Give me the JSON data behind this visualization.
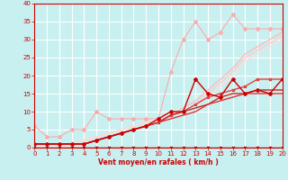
{
  "background_color": "#c8f0f0",
  "grid_color": "#ffffff",
  "xlabel": "Vent moyen/en rafales ( km/h )",
  "xlabel_color": "#cc0000",
  "tick_color": "#cc0000",
  "xlim": [
    0,
    20
  ],
  "ylim": [
    0,
    40
  ],
  "xticks": [
    0,
    1,
    2,
    3,
    4,
    5,
    6,
    7,
    8,
    9,
    10,
    11,
    12,
    13,
    14,
    15,
    16,
    17,
    18,
    19,
    20
  ],
  "yticks": [
    0,
    5,
    10,
    15,
    20,
    25,
    30,
    35,
    40
  ],
  "series": [
    {
      "x": [
        0,
        1,
        2,
        3,
        4,
        5,
        6,
        7,
        8,
        9,
        10,
        11,
        12,
        13,
        14,
        15,
        16,
        17,
        18,
        19,
        20
      ],
      "y": [
        6,
        3,
        3,
        5,
        5,
        10,
        8,
        8,
        8,
        8,
        8,
        21,
        30,
        35,
        30,
        32,
        37,
        33,
        33,
        33,
        33
      ],
      "color": "#ffaaaa",
      "lw": 0.8,
      "marker": "D",
      "ms": 2,
      "zorder": 2
    },
    {
      "x": [
        0,
        1,
        2,
        3,
        4,
        5,
        6,
        7,
        8,
        9,
        10,
        11,
        12,
        13,
        14,
        15,
        16,
        17,
        18,
        19,
        20
      ],
      "y": [
        0,
        0,
        0,
        1,
        2,
        3,
        4,
        5,
        6,
        7,
        8,
        9,
        11,
        13,
        16,
        19,
        22,
        26,
        28,
        30,
        32
      ],
      "color": "#ffbbbb",
      "lw": 1.0,
      "marker": null,
      "ms": 0,
      "zorder": 3
    },
    {
      "x": [
        0,
        1,
        2,
        3,
        4,
        5,
        6,
        7,
        8,
        9,
        10,
        11,
        12,
        13,
        14,
        15,
        16,
        17,
        18,
        19,
        20
      ],
      "y": [
        0,
        0,
        0,
        1,
        2,
        3,
        4,
        5,
        6,
        7,
        8,
        9,
        10,
        12,
        15,
        18,
        21,
        25,
        27,
        29,
        31
      ],
      "color": "#ffcccc",
      "lw": 1.0,
      "marker": null,
      "ms": 0,
      "zorder": 3
    },
    {
      "x": [
        0,
        1,
        2,
        3,
        4,
        5,
        6,
        7,
        8,
        9,
        10,
        11,
        12,
        13,
        14,
        15,
        16,
        17,
        18,
        19,
        20
      ],
      "y": [
        0,
        0,
        0,
        1,
        2,
        3,
        4,
        5,
        6,
        7,
        8,
        9,
        10,
        12,
        14,
        17,
        20,
        24,
        26,
        28,
        30
      ],
      "color": "#ffdddd",
      "lw": 1.0,
      "marker": null,
      "ms": 0,
      "zorder": 3
    },
    {
      "x": [
        0,
        1,
        2,
        3,
        4,
        5,
        6,
        7,
        8,
        9,
        10,
        11,
        12,
        13,
        14,
        15,
        16,
        17,
        18,
        19,
        20
      ],
      "y": [
        1,
        1,
        1,
        1,
        1,
        2,
        3,
        4,
        5,
        6,
        7,
        9,
        10,
        12,
        14,
        15,
        16,
        17,
        19,
        19,
        19
      ],
      "color": "#dd4444",
      "lw": 1.0,
      "marker": "s",
      "ms": 2,
      "zorder": 4
    },
    {
      "x": [
        0,
        1,
        2,
        3,
        4,
        5,
        6,
        7,
        8,
        9,
        10,
        11,
        12,
        13,
        14,
        15,
        16,
        17,
        18,
        19,
        20
      ],
      "y": [
        1,
        1,
        1,
        1,
        1,
        2,
        3,
        4,
        5,
        6,
        8,
        10,
        10,
        19,
        15,
        14,
        19,
        15,
        16,
        15,
        19
      ],
      "color": "#cc0000",
      "lw": 1.0,
      "marker": "D",
      "ms": 2,
      "zorder": 5
    },
    {
      "x": [
        0,
        1,
        2,
        3,
        4,
        5,
        6,
        7,
        8,
        9,
        10,
        11,
        12,
        13,
        14,
        15,
        16,
        17,
        18,
        19,
        20
      ],
      "y": [
        1,
        1,
        1,
        1,
        1,
        2,
        3,
        4,
        5,
        6,
        7,
        9,
        10,
        11,
        12,
        14,
        15,
        15,
        16,
        16,
        16
      ],
      "color": "#cc2222",
      "lw": 1.0,
      "marker": null,
      "ms": 0,
      "zorder": 4
    },
    {
      "x": [
        0,
        1,
        2,
        3,
        4,
        5,
        6,
        7,
        8,
        9,
        10,
        11,
        12,
        13,
        14,
        15,
        16,
        17,
        18,
        19,
        20
      ],
      "y": [
        1,
        1,
        1,
        1,
        1,
        2,
        3,
        4,
        5,
        6,
        7,
        8,
        9,
        10,
        12,
        13,
        14,
        15,
        15,
        15,
        15
      ],
      "color": "#dd3333",
      "lw": 1.0,
      "marker": null,
      "ms": 0,
      "zorder": 4
    },
    {
      "x": [
        0,
        1,
        2,
        3,
        4,
        5,
        6,
        7,
        8,
        9,
        10,
        11,
        12,
        13,
        14,
        15,
        16,
        17,
        18,
        19,
        20
      ],
      "y": [
        0,
        0,
        0,
        0,
        0,
        0,
        0,
        0,
        0,
        0,
        0,
        0,
        0,
        0,
        0,
        0,
        0,
        0,
        0,
        0,
        0
      ],
      "color": "#cc0000",
      "lw": 1.0,
      "marker": "s",
      "ms": 2,
      "zorder": 5
    }
  ]
}
